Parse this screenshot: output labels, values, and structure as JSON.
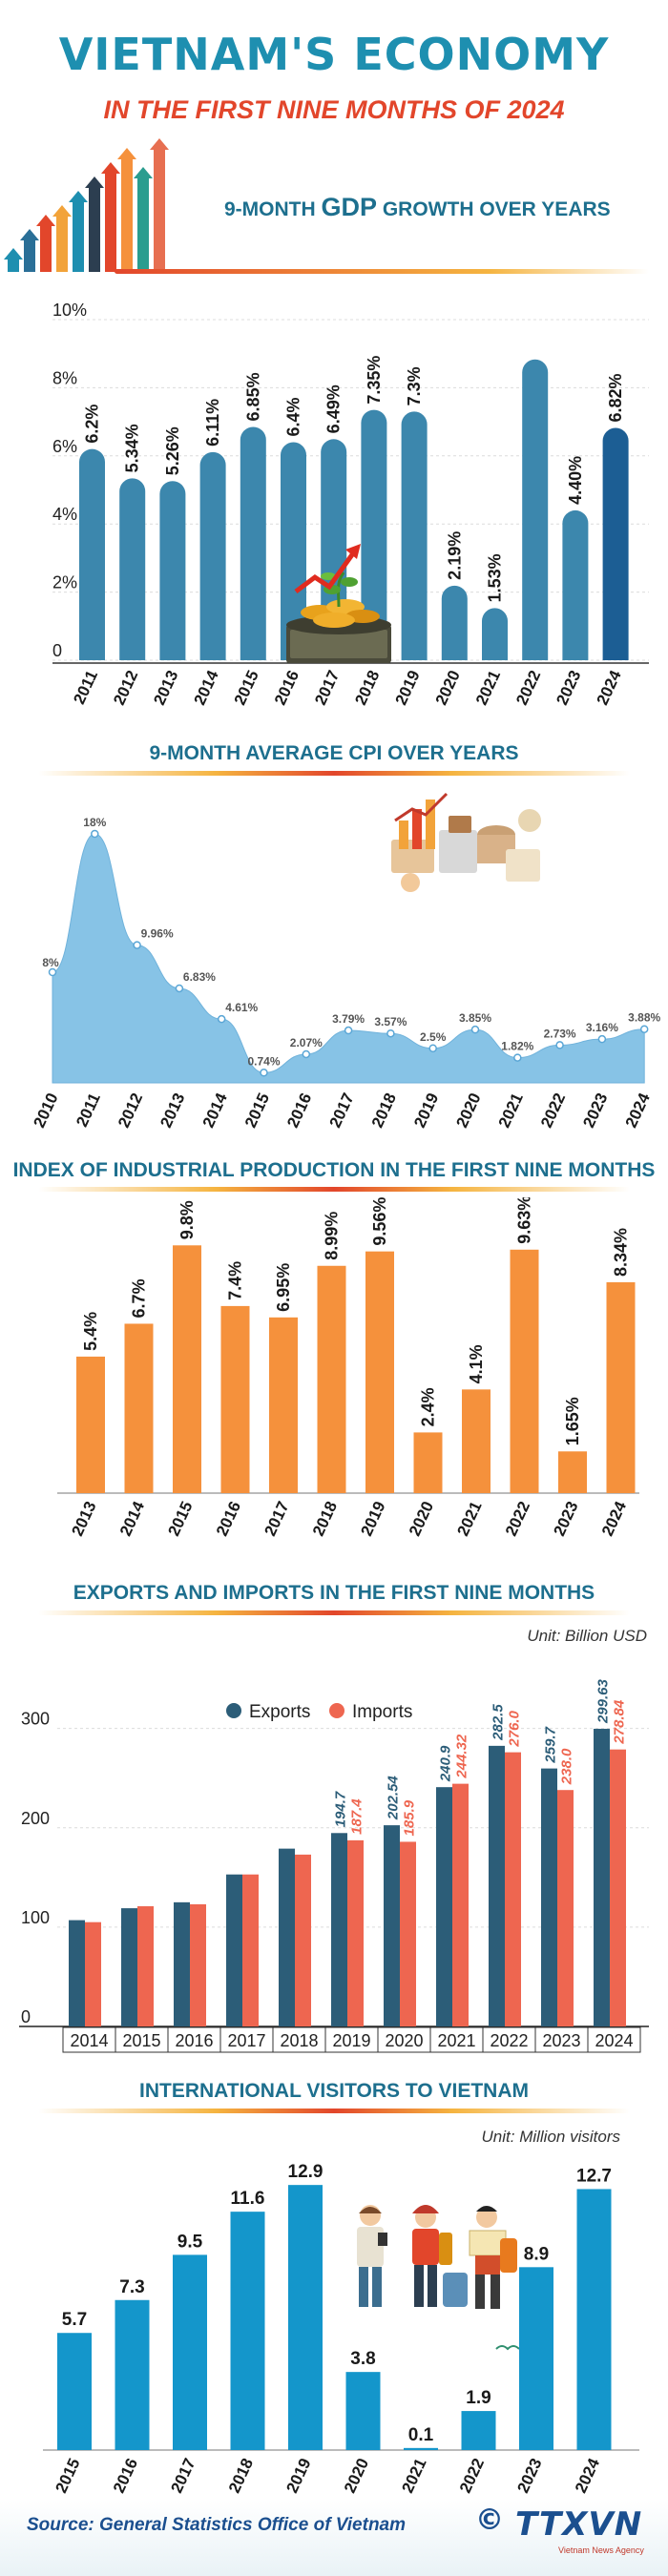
{
  "header": {
    "title": "VIETNAM'S ECONOMY",
    "subtitle": "IN THE FIRST NINE MONTHS OF 2024"
  },
  "gdp": {
    "title_pre": "9-MONTH ",
    "title_bold": "GDP",
    "title_post": " GROWTH OVER YEARS"
  },
  "cpi": {
    "title": "9-MONTH AVERAGE CPI OVER YEARS"
  },
  "iip": {
    "title": "INDEX OF INDUSTRIAL PRODUCTION IN THE FIRST NINE MONTHS"
  },
  "trade": {
    "title": "EXPORTS AND IMPORTS IN THE FIRST NINE MONTHS",
    "unit": "Unit: Billion USD"
  },
  "visitors": {
    "title": "INTERNATIONAL VISITORS TO VIETNAM",
    "unit": "Unit: Million visitors"
  },
  "footer": {
    "source": "Source: General Statistics Office of Vietnam",
    "copyright": "©",
    "logo": "TTXVN",
    "logo_sub": "Vietnam News Agency"
  },
  "colors": {
    "title_blue": "#1e8fb0",
    "subtitle_red": "#e2462b",
    "gdp_bar": "#3c87ad",
    "gdp_bar_2024": "#1c5e94",
    "cpi_area": "#87c3e6",
    "iip_bar": "#f5913c",
    "exports": "#2c5d78",
    "imports": "#ee6650",
    "visitors_bar": "#1496cb"
  },
  "chart_data": [
    {
      "type": "bar",
      "id": "gdp",
      "categories": [
        "2011",
        "2012",
        "2013",
        "2014",
        "2015",
        "2016",
        "2017",
        "2018",
        "2019",
        "2020",
        "2021",
        "2022",
        "2023",
        "2024"
      ],
      "values": [
        6.2,
        5.34,
        5.26,
        6.11,
        6.85,
        6.4,
        6.49,
        7.35,
        7.3,
        2.19,
        1.53,
        8.83,
        4.4,
        6.82
      ],
      "labels": [
        "6.2%",
        "5.34%",
        "5.26%",
        "6.11%",
        "6.85%",
        "6.4%",
        "6.49%",
        "7.35%",
        "7.3%",
        "2.19%",
        "1.53%",
        "",
        "4.40%",
        "6.82%"
      ],
      "ylim": [
        0,
        10
      ],
      "yticks": [
        "0",
        "2%",
        "4%",
        "6%",
        "8%",
        "10%"
      ],
      "highlight": "2024"
    },
    {
      "type": "area",
      "id": "cpi",
      "categories": [
        "2010",
        "2011",
        "2012",
        "2013",
        "2014",
        "2015",
        "2016",
        "2017",
        "2018",
        "2019",
        "2020",
        "2021",
        "2022",
        "2023",
        "2024"
      ],
      "values": [
        8.0,
        18.0,
        9.96,
        6.83,
        4.61,
        0.74,
        2.07,
        3.79,
        3.57,
        2.5,
        3.85,
        1.82,
        2.73,
        3.16,
        3.88
      ],
      "labels": [
        "8%",
        "18%",
        "9.96%",
        "6.83%",
        "4.61%",
        "0.74%",
        "2.07%",
        "3.79%",
        "3.57%",
        "2.5%",
        "3.85%",
        "1.82%",
        "2.73%",
        "3.16%",
        "3.88%"
      ],
      "ylim": [
        0,
        20
      ]
    },
    {
      "type": "bar",
      "id": "iip",
      "categories": [
        "2013",
        "2014",
        "2015",
        "2016",
        "2017",
        "2018",
        "2019",
        "2020",
        "2021",
        "2022",
        "2023",
        "2024"
      ],
      "values": [
        5.4,
        6.7,
        9.8,
        7.4,
        6.95,
        8.99,
        9.56,
        2.4,
        4.1,
        9.63,
        1.65,
        8.34
      ],
      "labels": [
        "5.4%",
        "6.7%",
        "9.8%",
        "7.4%",
        "6.95%",
        "8.99%",
        "9.56%",
        "2.4%",
        "4.1%",
        "9.63%",
        "1.65%",
        "8.34%"
      ],
      "ylim": [
        0,
        10
      ]
    },
    {
      "type": "bar",
      "id": "trade",
      "categories": [
        "2014",
        "2015",
        "2016",
        "2017",
        "2018",
        "2019",
        "2020",
        "2021",
        "2022",
        "2023",
        "2024"
      ],
      "series": [
        {
          "name": "Exports",
          "values": [
            107,
            119,
            125,
            153,
            179,
            194.7,
            202.54,
            240.9,
            282.5,
            259.7,
            299.63
          ],
          "labels": [
            "",
            "",
            "",
            "",
            "",
            "194.7",
            "202.54",
            "240.9",
            "282.5",
            "259.7",
            "299.63"
          ]
        },
        {
          "name": "Imports",
          "values": [
            105,
            121,
            123,
            153,
            173,
            187.4,
            185.9,
            244.32,
            276.0,
            238.0,
            278.84
          ],
          "labels": [
            "",
            "",
            "",
            "",
            "",
            "187.4",
            "185.9",
            "244.32",
            "276.0",
            "238.0",
            "278.84"
          ]
        }
      ],
      "ylim": [
        0,
        340
      ],
      "yticks": [
        "0",
        "100",
        "200",
        "300"
      ],
      "legend": "top-center"
    },
    {
      "type": "bar",
      "id": "visitors",
      "categories": [
        "2015",
        "2016",
        "2017",
        "2018",
        "2019",
        "2020",
        "2021",
        "2022",
        "2023",
        "2024"
      ],
      "values": [
        5.7,
        7.3,
        9.5,
        11.6,
        12.9,
        3.8,
        0.1,
        1.9,
        8.9,
        12.7
      ],
      "labels": [
        "5.7",
        "7.3",
        "9.5",
        "11.6",
        "12.9",
        "3.8",
        "0.1",
        "1.9",
        "8.9",
        "12.7"
      ],
      "ylim": [
        0,
        13
      ]
    }
  ]
}
